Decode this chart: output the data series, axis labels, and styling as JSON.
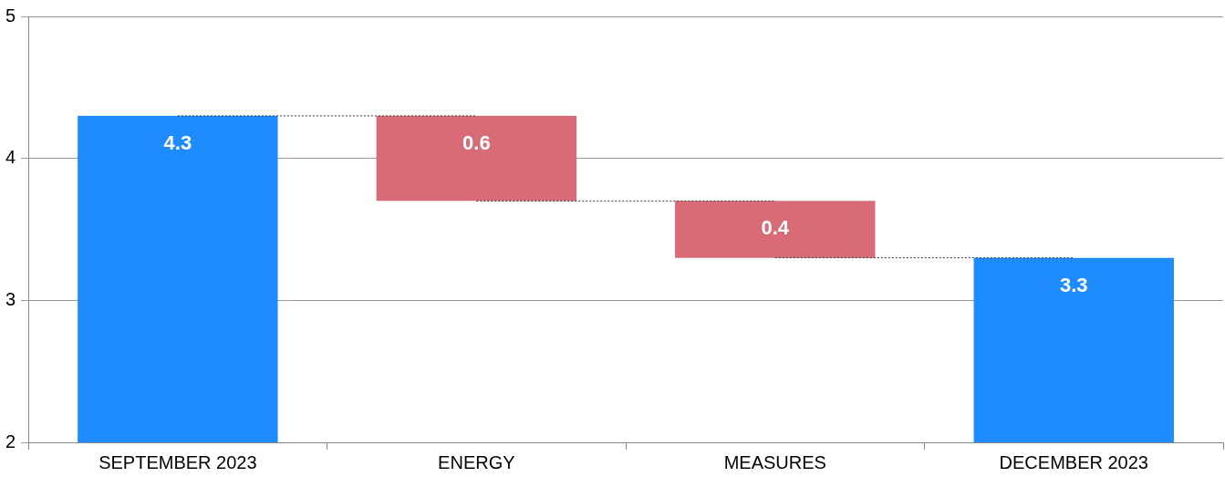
{
  "chart_data": {
    "type": "bar",
    "categories": [
      "SEPTEMBER 2023",
      "ENERGY",
      "MEASURES",
      "DECEMBER 2023"
    ],
    "values": [
      4.3,
      -0.6,
      -0.4,
      3.3
    ],
    "base": [
      null,
      4.3,
      3.7,
      null
    ],
    "colors": [
      "#1e8cff",
      "#d96b77",
      "#d96b77",
      "#1e8cff"
    ],
    "value_labels": [
      "4.3",
      "0.6",
      "0.4",
      "3.3"
    ],
    "ylim": [
      2,
      5
    ],
    "yticks": [
      2,
      3,
      4,
      5
    ],
    "grid": "y",
    "legend": false
  }
}
